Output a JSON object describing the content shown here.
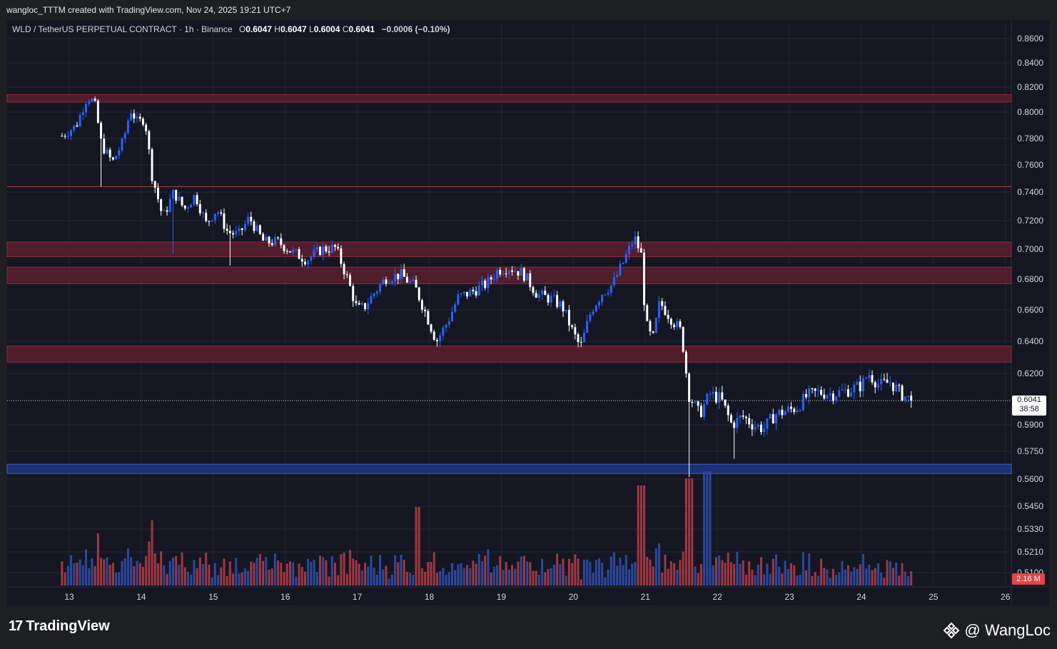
{
  "header": {
    "credit": "wangloc_TTTM created with TradingView.com, Nov 24, 2025 19:21 UTC+7"
  },
  "legend": {
    "symbol": "WLD / TetherUS PERPETUAL CONTRACT · 1h · Binance",
    "open_label": "O",
    "open": "0.6047",
    "high_label": "H",
    "high": "0.6047",
    "low_label": "L",
    "low": "0.6004",
    "close_label": "C",
    "close": "0.6041",
    "change": "−0.0006 (−0.10%)"
  },
  "price_tag": {
    "price": "0.6041",
    "countdown": "38:58"
  },
  "volume_tag": {
    "value": "2.16 M"
  },
  "footer": {
    "brand": "TradingView",
    "watermark": "@ WangLoc"
  },
  "colors": {
    "background": "#141722",
    "bull": "#2962ff",
    "bear": "#ffffff",
    "resistance_zone": "#5b1f2e",
    "support_zone": "#1e3a8a",
    "volume_up": "#2f4fb0",
    "volume_down": "#b23b45"
  },
  "chart_data": {
    "type": "candlestick",
    "timeframe": "1h",
    "x_ticks": [
      "13",
      "14",
      "15",
      "16",
      "17",
      "18",
      "19",
      "20",
      "21",
      "22",
      "23",
      "24",
      "25",
      "26"
    ],
    "y_ticks": [
      "0.8600",
      "0.8400",
      "0.8200",
      "0.8000",
      "0.7800",
      "0.7600",
      "0.7400",
      "0.7200",
      "0.7000",
      "0.6800",
      "0.6600",
      "0.6400",
      "0.6200",
      "0.5900",
      "0.5750",
      "0.5600",
      "0.5450",
      "0.5330",
      "0.5210",
      "0.5100"
    ],
    "last_price": 0.6041,
    "zones": [
      {
        "type": "resistance",
        "from": 0.808,
        "to": 0.814
      },
      {
        "type": "resistance",
        "from": 0.695,
        "to": 0.705
      },
      {
        "type": "resistance",
        "from": 0.677,
        "to": 0.688
      },
      {
        "type": "resistance",
        "from": 0.627,
        "to": 0.637
      },
      {
        "type": "support",
        "from": 0.563,
        "to": 0.568
      }
    ],
    "level_lines": [
      0.744
    ],
    "price_path": [
      [
        12.9,
        0.782
      ],
      [
        13.1,
        0.79
      ],
      [
        13.25,
        0.812
      ],
      [
        13.35,
        0.808
      ],
      [
        13.45,
        0.775
      ],
      [
        13.6,
        0.762
      ],
      [
        13.75,
        0.778
      ],
      [
        13.85,
        0.802
      ],
      [
        13.95,
        0.792
      ],
      [
        14.05,
        0.795
      ],
      [
        14.15,
        0.752
      ],
      [
        14.3,
        0.722
      ],
      [
        14.45,
        0.74
      ],
      [
        14.6,
        0.728
      ],
      [
        14.75,
        0.738
      ],
      [
        14.9,
        0.718
      ],
      [
        15.05,
        0.728
      ],
      [
        15.2,
        0.712
      ],
      [
        15.35,
        0.71
      ],
      [
        15.5,
        0.722
      ],
      [
        15.7,
        0.705
      ],
      [
        15.9,
        0.705
      ],
      [
        16.1,
        0.698
      ],
      [
        16.3,
        0.693
      ],
      [
        16.5,
        0.7
      ],
      [
        16.7,
        0.701
      ],
      [
        16.85,
        0.682
      ],
      [
        17.0,
        0.66
      ],
      [
        17.1,
        0.662
      ],
      [
        17.25,
        0.672
      ],
      [
        17.4,
        0.681
      ],
      [
        17.6,
        0.683
      ],
      [
        17.8,
        0.675
      ],
      [
        17.95,
        0.658
      ],
      [
        18.1,
        0.64
      ],
      [
        18.25,
        0.652
      ],
      [
        18.4,
        0.668
      ],
      [
        18.6,
        0.672
      ],
      [
        18.8,
        0.677
      ],
      [
        18.95,
        0.686
      ],
      [
        19.1,
        0.688
      ],
      [
        19.3,
        0.684
      ],
      [
        19.5,
        0.67
      ],
      [
        19.7,
        0.667
      ],
      [
        19.85,
        0.662
      ],
      [
        20.0,
        0.645
      ],
      [
        20.1,
        0.636
      ],
      [
        20.25,
        0.66
      ],
      [
        20.4,
        0.671
      ],
      [
        20.55,
        0.677
      ],
      [
        20.7,
        0.692
      ],
      [
        20.85,
        0.708
      ],
      [
        20.95,
        0.695
      ],
      [
        21.0,
        0.652
      ],
      [
        21.1,
        0.64
      ],
      [
        21.2,
        0.665
      ],
      [
        21.35,
        0.655
      ],
      [
        21.5,
        0.646
      ],
      [
        21.6,
        0.608
      ],
      [
        21.75,
        0.596
      ],
      [
        21.9,
        0.608
      ],
      [
        22.05,
        0.605
      ],
      [
        22.2,
        0.59
      ],
      [
        22.35,
        0.595
      ],
      [
        22.5,
        0.59
      ],
      [
        22.65,
        0.588
      ],
      [
        22.8,
        0.596
      ],
      [
        22.95,
        0.598
      ],
      [
        23.1,
        0.6
      ],
      [
        23.25,
        0.607
      ],
      [
        23.4,
        0.609
      ],
      [
        23.6,
        0.608
      ],
      [
        23.8,
        0.61
      ],
      [
        24.0,
        0.613
      ],
      [
        24.1,
        0.62
      ],
      [
        24.25,
        0.613
      ],
      [
        24.4,
        0.615
      ],
      [
        24.55,
        0.608
      ],
      [
        24.7,
        0.6041
      ]
    ]
  }
}
